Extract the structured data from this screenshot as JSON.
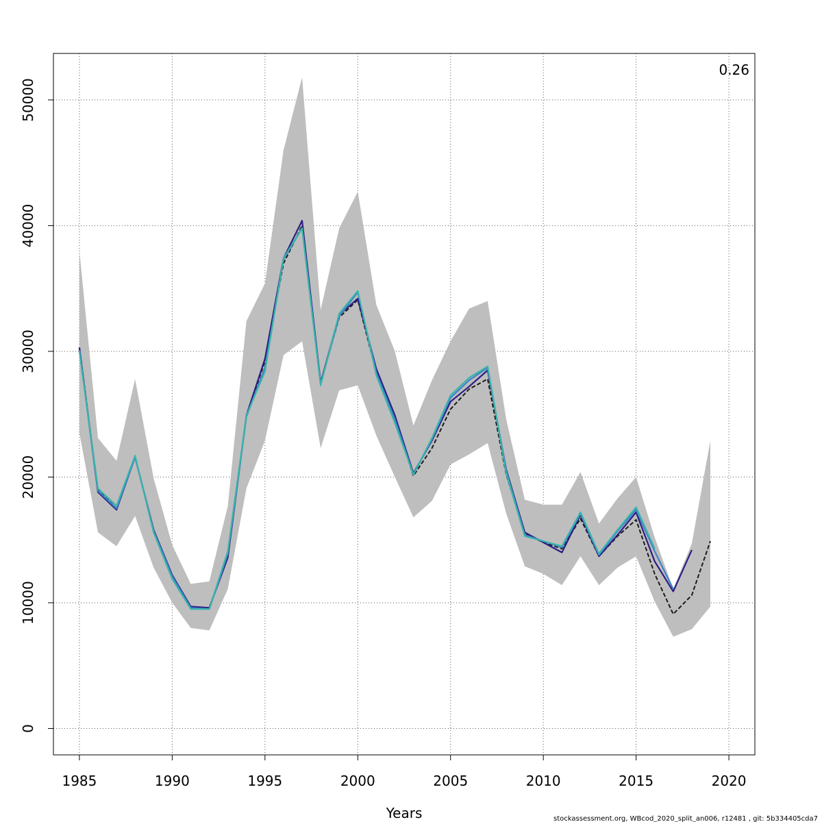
{
  "chart_data": {
    "type": "line",
    "title": "",
    "xlabel": "Years",
    "ylabel": "",
    "xlim": [
      1983.6,
      2021.4
    ],
    "ylim": [
      -2100,
      53700
    ],
    "x_ticks": [
      1985,
      1990,
      1995,
      2000,
      2005,
      2010,
      2015,
      2020
    ],
    "y_ticks": [
      0,
      10000,
      20000,
      30000,
      40000,
      50000
    ],
    "grid": true,
    "annotation": "0.26",
    "footer": "stockassessment.org, WBcod_2020_split_an006, r12481 , git: 5b334405cda7",
    "band": {
      "x": [
        1985,
        1986,
        1987,
        1988,
        1989,
        1990,
        1991,
        1992,
        1993,
        1994,
        1995,
        1996,
        1997,
        1998,
        1999,
        2000,
        2001,
        2002,
        2003,
        2004,
        2005,
        2006,
        2007,
        2008,
        2009,
        2010,
        2011,
        2012,
        2013,
        2014,
        2015,
        2016,
        2017,
        2018,
        2019
      ],
      "lower": [
        23500,
        15600,
        14500,
        16900,
        12800,
        10000,
        8000,
        7800,
        11100,
        19100,
        22900,
        29700,
        30800,
        22300,
        26900,
        27300,
        23300,
        20000,
        16800,
        18100,
        21000,
        21800,
        22700,
        17100,
        12900,
        12300,
        11400,
        13700,
        11400,
        12800,
        13700,
        10100,
        7300,
        7900,
        9700
      ],
      "upper": [
        38000,
        23100,
        21300,
        27800,
        19900,
        14600,
        11500,
        11700,
        17700,
        32400,
        35400,
        46000,
        51800,
        33300,
        39800,
        42700,
        33700,
        30000,
        24100,
        27700,
        30800,
        33400,
        34000,
        24600,
        18200,
        17800,
        17800,
        20400,
        16300,
        18300,
        20000,
        15200,
        11100,
        14700,
        22900
      ]
    },
    "series": [
      {
        "color": "#1b1b1b",
        "dashed": true,
        "x": [
          1985,
          1986,
          1987,
          1988,
          1989,
          1990,
          1991,
          1992,
          1993,
          1994,
          1995,
          1996,
          1997,
          1998,
          1999,
          2000,
          2001,
          2002,
          2003,
          2004,
          2005,
          2006,
          2007,
          2008,
          2009,
          2010,
          2011,
          2012,
          2013,
          2014,
          2015,
          2016,
          2017,
          2018,
          2019
        ],
        "values": [
          30300,
          19000,
          17500,
          21600,
          15700,
          12000,
          9600,
          9600,
          13800,
          24900,
          29200,
          37000,
          40000,
          27500,
          32700,
          34100,
          28300,
          24600,
          20100,
          22300,
          25400,
          27000,
          27800,
          20200,
          15500,
          14800,
          14300,
          16700,
          13700,
          15300,
          16600,
          12300,
          9100,
          10600,
          14900
        ]
      },
      {
        "color": "#2c1c84",
        "dashed": false,
        "x": [
          1985,
          1986,
          1987,
          1988,
          1989,
          1990,
          1991,
          1992,
          1993,
          1994,
          1995,
          1996,
          1997,
          1998,
          1999,
          2000,
          2001,
          2002,
          2003,
          2004,
          2005,
          2006,
          2007,
          2008,
          2009,
          2010,
          2011,
          2012,
          2013,
          2014,
          2015,
          2016,
          2017,
          2018
        ],
        "values": [
          30300,
          18800,
          17400,
          21600,
          15800,
          12200,
          9700,
          9600,
          13600,
          24900,
          29400,
          37400,
          40400,
          27500,
          32900,
          34200,
          28600,
          24900,
          20300,
          22900,
          26000,
          27200,
          28500,
          20600,
          15600,
          14800,
          14000,
          17000,
          13700,
          15400,
          17200,
          13300,
          10900,
          14200
        ]
      },
      {
        "color": "#3b82c4",
        "dashed": false,
        "x": [
          1985,
          1986,
          1987,
          1988,
          1989,
          1990,
          1991,
          1992,
          1993,
          1994,
          1995,
          1996,
          1997,
          1998,
          1999,
          2000,
          2001,
          2002,
          2003,
          2004,
          2005,
          2006,
          2007,
          2008,
          2009,
          2010,
          2011,
          2012,
          2013,
          2014,
          2015,
          2016,
          2017
        ],
        "values": [
          30100,
          18900,
          17500,
          21600,
          15700,
          12100,
          9600,
          9500,
          13900,
          24800,
          28700,
          37300,
          39800,
          27400,
          32800,
          34700,
          28300,
          24600,
          20200,
          23000,
          26300,
          27700,
          28700,
          20500,
          15400,
          14900,
          14400,
          17100,
          13800,
          15700,
          17400,
          14100,
          11100
        ]
      },
      {
        "color": "#38b4ac",
        "dashed": false,
        "x": [
          1985,
          1986,
          1987,
          1988,
          1989,
          1990,
          1991,
          1992,
          1993,
          1994,
          1995,
          1996,
          1997,
          1998,
          1999,
          2000,
          2001,
          2002,
          2003,
          2004,
          2005,
          2006,
          2007,
          2008,
          2009,
          2010,
          2011,
          2012,
          2013,
          2014,
          2015,
          2016
        ],
        "values": [
          30000,
          19100,
          17700,
          21700,
          15600,
          11900,
          9500,
          9500,
          14100,
          24900,
          28400,
          37400,
          39800,
          27300,
          33000,
          34800,
          28100,
          24300,
          20200,
          23100,
          26500,
          27900,
          28800,
          20300,
          15300,
          14900,
          14500,
          17200,
          13900,
          15800,
          17600,
          14300
        ]
      }
    ]
  }
}
